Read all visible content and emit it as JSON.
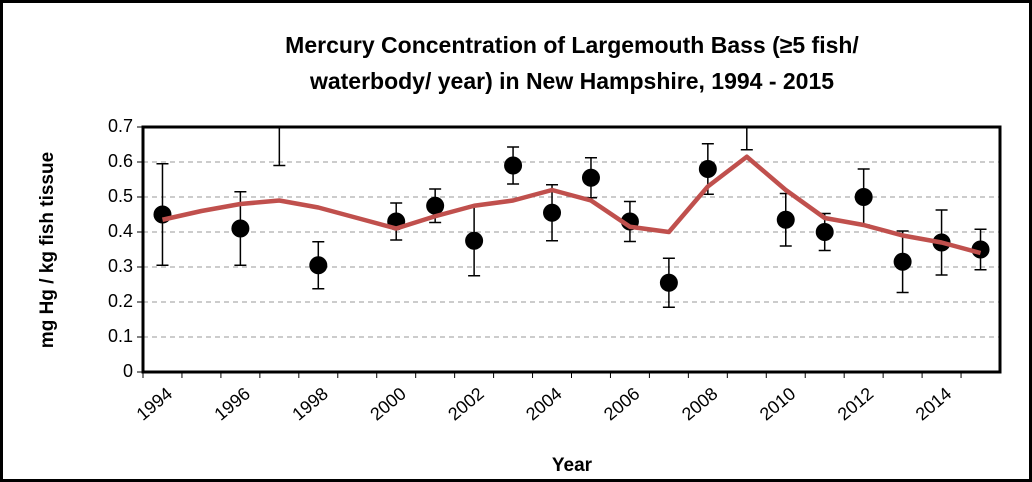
{
  "chart_data": {
    "type": "line",
    "title": [
      "Mercury Concentration of Largemouth Bass (≥5 fish/",
      "waterbody/ year) in New Hampshire, 1994 - 2015"
    ],
    "x_label": "Year",
    "y_label": "mg Hg / kg fish tissue",
    "categories": [
      "1994",
      null,
      "1996",
      null,
      "1998",
      null,
      "2000",
      null,
      "2002",
      null,
      "2004",
      null,
      "2006",
      null,
      "2008",
      null,
      "2010",
      null,
      "2012",
      null,
      "2014",
      null
    ],
    "series": [
      {
        "mode": "markers",
        "color": "#000000",
        "values": [
          0.45,
          null,
          0.41,
          0.78,
          0.305,
          null,
          0.43,
          0.475,
          0.375,
          0.59,
          0.455,
          0.555,
          0.43,
          0.255,
          0.58,
          0.75,
          0.435,
          0.4,
          0.5,
          0.315,
          0.37,
          0.35
        ],
        "errors": [
          0.145,
          null,
          0.105,
          0.19,
          0.067,
          null,
          0.053,
          0.048,
          0.1,
          0.053,
          0.08,
          0.057,
          0.057,
          0.07,
          0.072,
          0.115,
          0.075,
          0.053,
          0.08,
          0.088,
          0.093,
          0.058
        ]
      },
      {
        "mode": "line",
        "color": "#c0504d",
        "values": [
          0.435,
          0.46,
          0.48,
          0.49,
          0.47,
          0.44,
          0.41,
          0.445,
          0.475,
          0.49,
          0.52,
          0.49,
          0.415,
          0.4,
          0.53,
          0.615,
          0.52,
          0.44,
          0.42,
          0.39,
          0.37,
          0.34
        ]
      }
    ],
    "ylim": [
      0,
      0.7
    ],
    "yticks": [
      0,
      0.1,
      0.2,
      0.3,
      0.4,
      0.5,
      0.6,
      0.7
    ],
    "grid": true
  }
}
